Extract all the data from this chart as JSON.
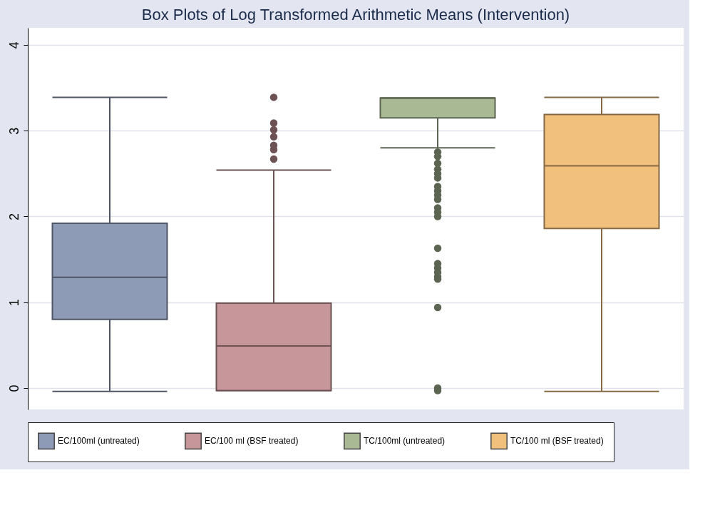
{
  "chart_data": {
    "type": "box",
    "title": "Box Plots of Log Transformed Arithmetic Means (Intervention)",
    "categories": [
      null,
      null,
      null,
      null
    ],
    "ylim": [
      -0.25,
      4.2
    ],
    "yticks": [
      0,
      1,
      2,
      3,
      4
    ],
    "grid": "y",
    "legend": "bottom",
    "series": [
      {
        "name": "EC/100ml (untreated)",
        "color": "#8e9bb6",
        "boxes": [
          {
            "low": -0.04,
            "q1": 0.8,
            "median": 1.29,
            "q3": 1.92,
            "high": 3.39
          },
          null,
          null,
          null
        ]
      },
      {
        "name": "EC/100 ml (BSF treated)",
        "color": "#c7969a",
        "boxes": [
          null,
          {
            "low": -0.03,
            "q1": -0.03,
            "median": 0.49,
            "q3": 0.99,
            "high": 2.54,
            "outliers": [
              3.39,
              3.09,
              3.01,
              2.93,
              2.83,
              2.78,
              2.67
            ]
          },
          null,
          null
        ]
      },
      {
        "name": "TC/100ml (untreated)",
        "color": "#a8b994",
        "boxes": [
          null,
          null,
          {
            "low": 2.8,
            "q1": 3.15,
            "median": 3.38,
            "q3": 3.38,
            "high": 3.38,
            "outliers": [
              2.75,
              2.7,
              2.62,
              2.55,
              2.5,
              2.45,
              2.35,
              2.3,
              2.25,
              2.2,
              2.1,
              2.05,
              2.0,
              1.63,
              1.45,
              1.4,
              1.35,
              1.3,
              1.27,
              0.94,
              0.0,
              -0.03
            ]
          },
          null
        ]
      },
      {
        "name": "TC/100 ml (BSF treated)",
        "color": "#f2c07d",
        "boxes": [
          null,
          null,
          null,
          {
            "low": -0.04,
            "q1": 1.86,
            "median": 2.59,
            "q3": 3.19,
            "high": 3.39
          }
        ]
      }
    ]
  }
}
